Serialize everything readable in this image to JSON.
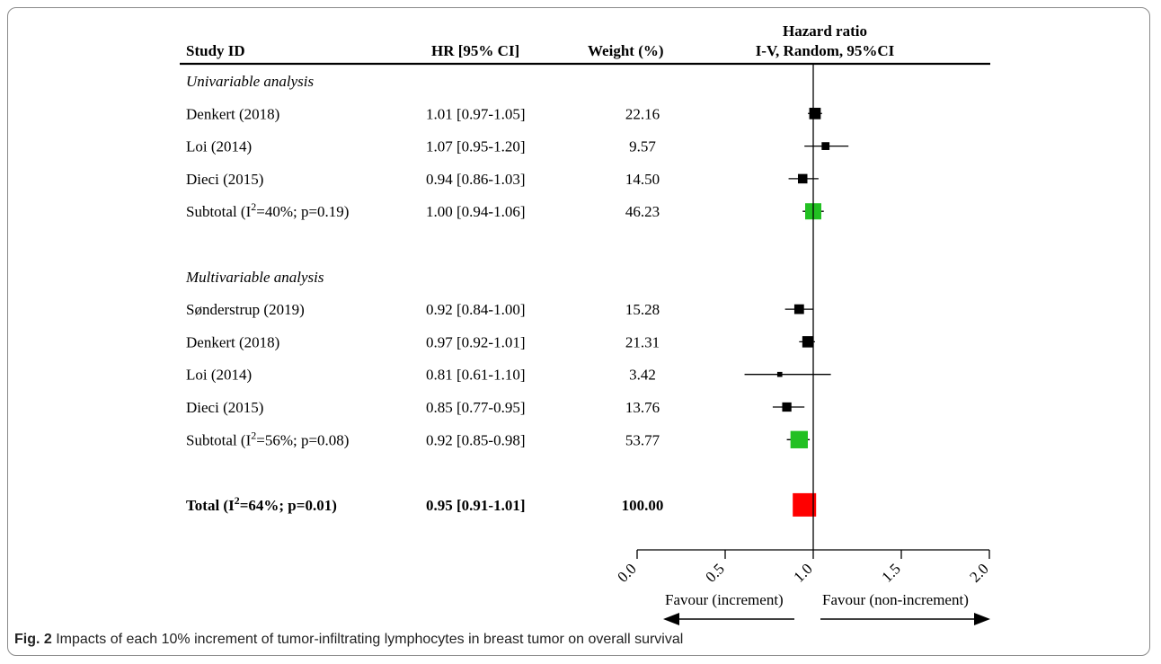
{
  "caption": {
    "label": "Fig. 2",
    "text": "Impacts of each 10% increment of tumor-infiltrating lymphocytes in breast tumor on overall survival"
  },
  "chart_data": {
    "type": "forest",
    "headers": {
      "study": "Study ID",
      "hr": "HR [95% CI]",
      "weight": "Weight (%)",
      "plot_line1": "Hazard ratio",
      "plot_line2": "I-V, Random, 95%CI"
    },
    "rows": [
      {
        "kind": "section",
        "label": "Univariable analysis"
      },
      {
        "kind": "study",
        "label": "Denkert (2018)",
        "hr_text": "1.01 [0.97-1.05]",
        "weight_text": "22.16",
        "hr": 1.01,
        "lo": 0.97,
        "hi": 1.05,
        "weight": 22.16,
        "color": "#000000"
      },
      {
        "kind": "study",
        "label": "Loi (2014)",
        "hr_text": "1.07 [0.95-1.20]",
        "weight_text": "9.57",
        "hr": 1.07,
        "lo": 0.95,
        "hi": 1.2,
        "weight": 9.57,
        "color": "#000000"
      },
      {
        "kind": "study",
        "label": "Dieci (2015)",
        "hr_text": "0.94 [0.86-1.03]",
        "weight_text": "14.50",
        "hr": 0.94,
        "lo": 0.86,
        "hi": 1.03,
        "weight": 14.5,
        "color": "#000000"
      },
      {
        "kind": "subtotal",
        "label_pre": "Subtotal (I",
        "label_sup": "2",
        "label_post": "=40%; p=0.19)",
        "hr_text": "1.00 [0.94-1.06]",
        "weight_text": "46.23",
        "hr": 1.0,
        "lo": 0.94,
        "hi": 1.06,
        "weight": 46.23,
        "color": "#22c022"
      },
      {
        "kind": "spacer"
      },
      {
        "kind": "section",
        "label": "Multivariable analysis"
      },
      {
        "kind": "study",
        "label": "Sønderstrup (2019)",
        "hr_text": "0.92 [0.84-1.00]",
        "weight_text": "15.28",
        "hr": 0.92,
        "lo": 0.84,
        "hi": 1.0,
        "weight": 15.28,
        "color": "#000000"
      },
      {
        "kind": "study",
        "label": "Denkert (2018)",
        "hr_text": "0.97 [0.92-1.01]",
        "weight_text": "21.31",
        "hr": 0.97,
        "lo": 0.92,
        "hi": 1.01,
        "weight": 21.31,
        "color": "#000000"
      },
      {
        "kind": "study",
        "label": "Loi (2014)",
        "hr_text": "0.81 [0.61-1.10]",
        "weight_text": "3.42",
        "hr": 0.81,
        "lo": 0.61,
        "hi": 1.1,
        "weight": 3.42,
        "color": "#000000"
      },
      {
        "kind": "study",
        "label": "Dieci (2015)",
        "hr_text": "0.85 [0.77-0.95]",
        "weight_text": "13.76",
        "hr": 0.85,
        "lo": 0.77,
        "hi": 0.95,
        "weight": 13.76,
        "color": "#000000"
      },
      {
        "kind": "subtotal",
        "label_pre": "Subtotal (I",
        "label_sup": "2",
        "label_post": "=56%; p=0.08)",
        "hr_text": "0.92 [0.85-0.98]",
        "weight_text": "53.77",
        "hr": 0.92,
        "lo": 0.85,
        "hi": 0.98,
        "weight": 53.77,
        "color": "#22c022"
      },
      {
        "kind": "spacer"
      },
      {
        "kind": "total",
        "label_pre": "Total (I",
        "label_sup": "2",
        "label_post": "=64%; p=0.01)",
        "hr_text": "0.95 [0.91-1.01]",
        "weight_text": "100.00",
        "hr": 0.95,
        "lo": 0.91,
        "hi": 1.01,
        "weight": 100.0,
        "color": "#ff0000"
      }
    ],
    "x_axis": {
      "ticks": [
        0.0,
        0.5,
        1.0,
        1.5,
        2.0
      ],
      "tick_labels": [
        "0.0",
        "0.5",
        "1.0",
        "1.5",
        "2.0"
      ],
      "xlim": [
        0.0,
        2.0
      ],
      "reference_line": 1.0
    },
    "favour_left": "Favour (increment)",
    "favour_right": "Favour (non-increment)"
  }
}
